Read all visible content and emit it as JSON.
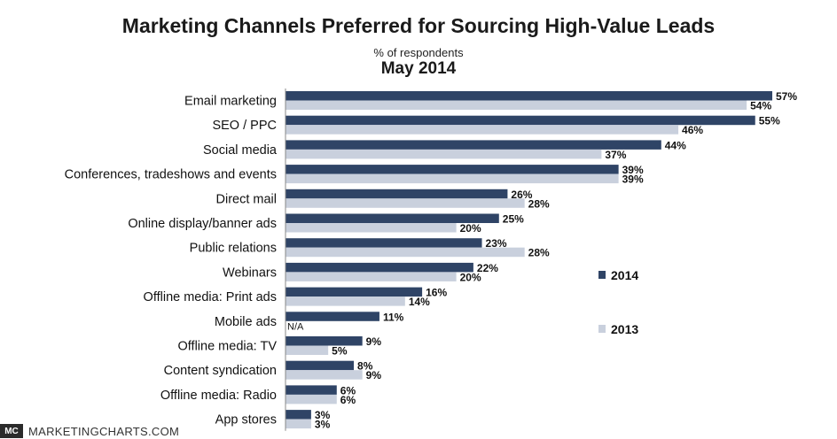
{
  "colors": {
    "series2014": "#2f4466",
    "series2013": "#c9d0dd"
  },
  "footer": {
    "logo": "MC",
    "source": "MARKETINGCHARTS.COM"
  },
  "chart_data": {
    "type": "bar",
    "orientation": "horizontal",
    "title": "Marketing Channels Preferred for Sourcing High-Value Leads",
    "subtitle": "% of respondents",
    "date": "May 2014",
    "unit": "%",
    "xlim": [
      0,
      60
    ],
    "grid": false,
    "legend_position": "right",
    "categories": [
      "Email marketing",
      "SEO / PPC",
      "Social media",
      "Conferences, tradeshows and events",
      "Direct mail",
      "Online display/banner ads",
      "Public relations",
      "Webinars",
      "Offline media: Print ads",
      "Mobile ads",
      "Offline media: TV",
      "Content syndication",
      "Offline media: Radio",
      "App stores"
    ],
    "series": [
      {
        "name": "2014",
        "values": [
          57,
          55,
          44,
          39,
          26,
          25,
          23,
          22,
          16,
          11,
          9,
          8,
          6,
          3
        ]
      },
      {
        "name": "2013",
        "values": [
          54,
          46,
          37,
          39,
          28,
          20,
          28,
          20,
          14,
          null,
          5,
          9,
          6,
          3
        ]
      }
    ],
    "missing_label": "N/A"
  }
}
